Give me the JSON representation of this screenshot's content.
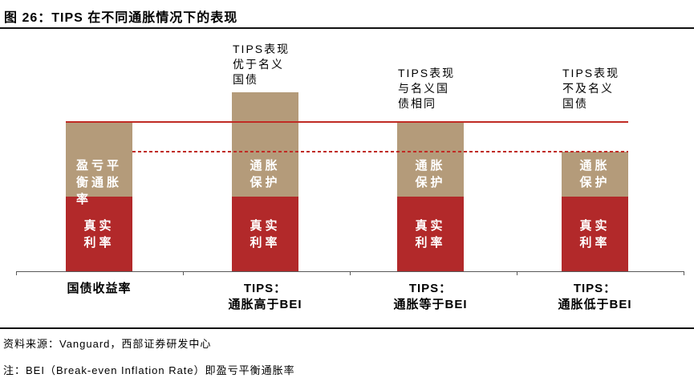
{
  "title": "图 26：TIPS 在不同通胀情况下的表现",
  "source": "资料来源：Vanguard，西部证券研发中心",
  "note": "注：BEI（Break-even Inflation Rate）即盈亏平衡通胀率",
  "colors": {
    "bar_real_rate": "#B2292A",
    "bar_inflation": "#B49B7A",
    "reference_line": "#C02B24",
    "axis": "#595959",
    "text": "#000000",
    "label_on_bar": "#FFFFFF"
  },
  "chart_data": {
    "type": "bar",
    "subtype": "stacked",
    "orientation": "vertical",
    "title": "TIPS 在不同通胀情况下的表现",
    "categories": [
      "国债收益率",
      "TIPS：\n通胀高于BEI",
      "TIPS：\n通胀等于BEI",
      "TIPS：\n通胀低于BEI"
    ],
    "series": [
      {
        "name": "真实利率",
        "color_key": "bar_real_rate",
        "values": [
          1.0,
          1.0,
          1.0,
          1.0
        ]
      },
      {
        "name": "盈亏平衡通胀率（通胀保护）",
        "color_key": "bar_inflation",
        "values": [
          1.0,
          1.4,
          1.0,
          0.6
        ]
      }
    ],
    "segment_labels": [
      {
        "bottom": "真实\n利率",
        "top": "盈亏平\n衡通胀\n率"
      },
      {
        "bottom": "真实\n利率",
        "top": "通胀\n保护"
      },
      {
        "bottom": "真实\n利率",
        "top": "通胀\n保护"
      },
      {
        "bottom": "真实\n利率",
        "top": "通胀\n保护"
      }
    ],
    "annotations": [
      null,
      "TIPS表现\n优于名义\n国债",
      "TIPS表现\n与名义国\n债相同",
      "TIPS表现\n不及名义\n国债"
    ],
    "reference_lines": [
      {
        "style": "solid",
        "value": 2.0
      },
      {
        "style": "dashed",
        "value": 1.6
      }
    ],
    "y_axis": {
      "visible": false
    },
    "x_axis": {
      "visible": true
    },
    "legend": "none",
    "grid": false
  }
}
